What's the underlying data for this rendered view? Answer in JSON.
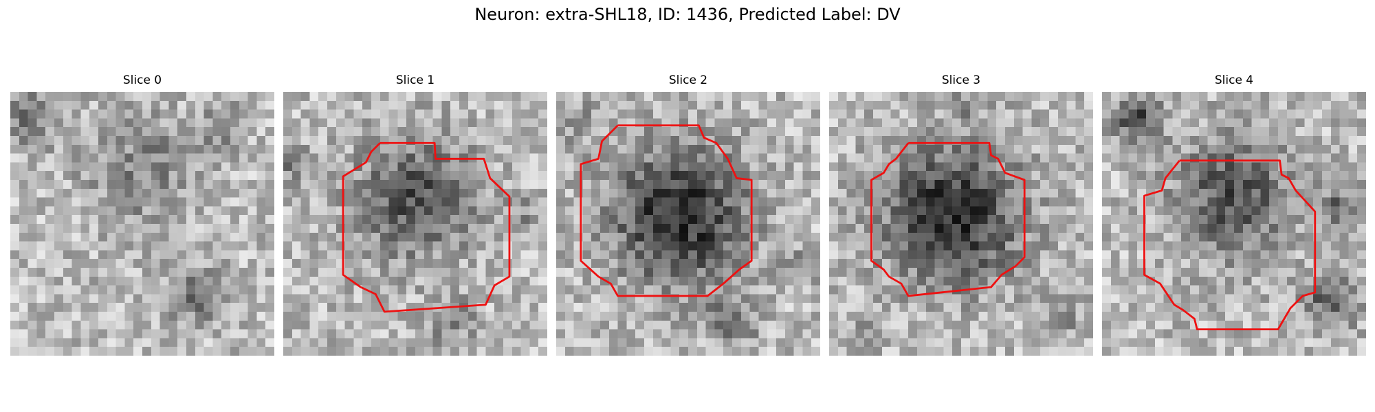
{
  "figure": {
    "title": "Neuron: extra-SHL18, ID: 1436, Predicted Label: DV"
  },
  "colors": {
    "contour": "#ee1111",
    "background": "#ffffff"
  },
  "panels": [
    {
      "title": "Slice 0",
      "has_contour": false,
      "blob": "faint",
      "content": "grayscale-noise-image"
    },
    {
      "title": "Slice 1",
      "has_contour": true,
      "blob": "medium",
      "content": "grayscale-noise-image"
    },
    {
      "title": "Slice 2",
      "has_contour": true,
      "blob": "dark",
      "content": "grayscale-noise-image"
    },
    {
      "title": "Slice 3",
      "has_contour": true,
      "blob": "dark",
      "content": "grayscale-noise-image"
    },
    {
      "title": "Slice 4",
      "has_contour": true,
      "blob": "medium",
      "content": "grayscale-noise-image"
    }
  ]
}
